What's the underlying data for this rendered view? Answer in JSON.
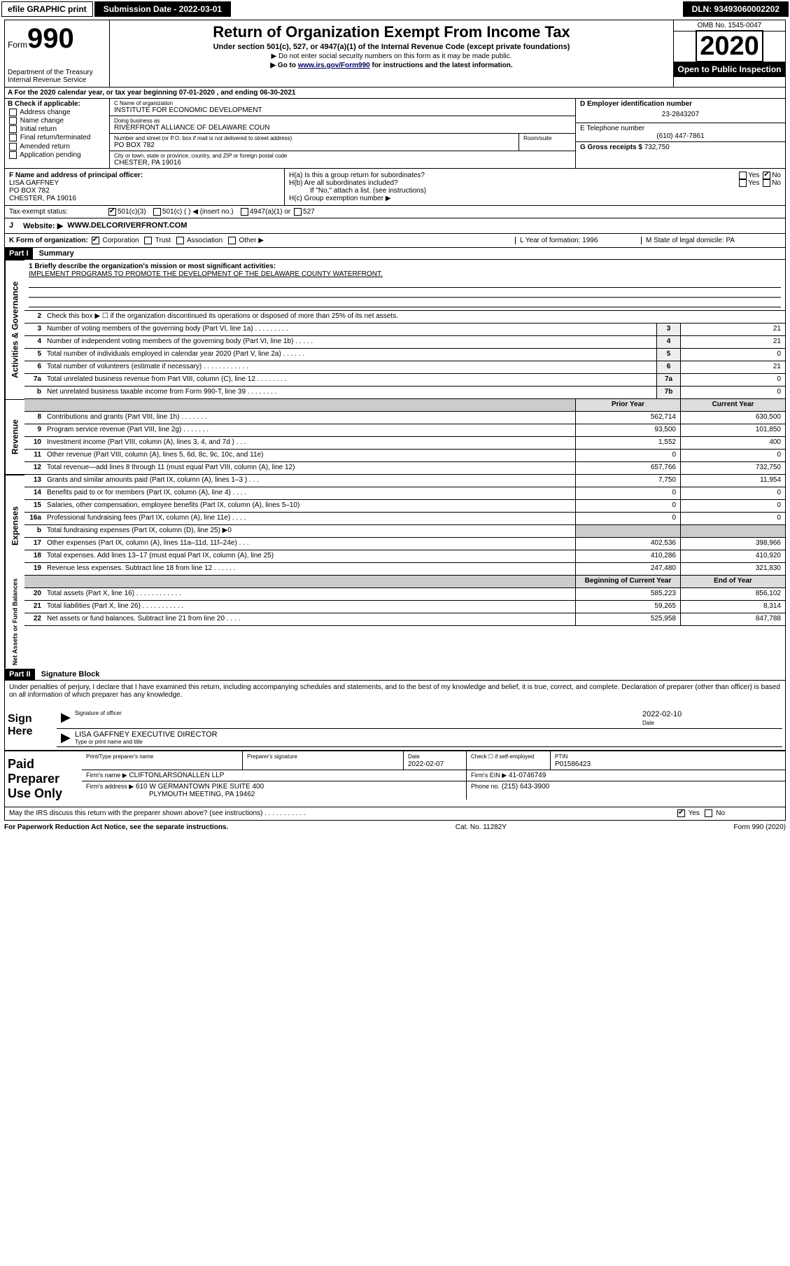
{
  "top": {
    "efile": "efile GRAPHIC print",
    "submission_label": "Submission Date - 2022-03-01",
    "dln": "DLN: 93493060002202"
  },
  "header": {
    "form_word": "Form",
    "form_num": "990",
    "title": "Return of Organization Exempt From Income Tax",
    "subtitle": "Under section 501(c), 527, or 4947(a)(1) of the Internal Revenue Code (except private foundations)",
    "note1": "▶ Do not enter social security numbers on this form as it may be made public.",
    "note2_pre": "▶ Go to ",
    "note2_link": "www.irs.gov/Form990",
    "note2_post": " for instructions and the latest information.",
    "dept": "Department of the Treasury",
    "irs": "Internal Revenue Service",
    "omb": "OMB No. 1545-0047",
    "year": "2020",
    "open": "Open to Public Inspection"
  },
  "rowA": "A For the 2020 calendar year, or tax year beginning 07-01-2020   , and ending 06-30-2021",
  "colB": {
    "hdr": "B Check if applicable:",
    "opts": [
      "Address change",
      "Name change",
      "Initial return",
      "Final return/terminated",
      "Amended return",
      "Application pending"
    ]
  },
  "org": {
    "name_lbl": "C Name of organization",
    "name": "INSTITUTE FOR ECONOMIC DEVELOPMENT",
    "dba_lbl": "Doing business as",
    "dba": "RIVERFRONT ALLIANCE OF DELAWARE COUN",
    "addr_lbl": "Number and street (or P.O. box if mail is not delivered to street address)",
    "addr": "PO BOX 782",
    "room_lbl": "Room/suite",
    "city_lbl": "City or town, state or province, country, and ZIP or foreign postal code",
    "city": "CHESTER, PA  19016"
  },
  "colD": {
    "ein_lbl": "D Employer identification number",
    "ein": "23-2843207",
    "tel_lbl": "E Telephone number",
    "tel": "(610) 447-7861",
    "gross_lbl": "G Gross receipts $",
    "gross": "732,750"
  },
  "f": {
    "lbl": "F  Name and address of principal officer:",
    "name": "LISA GAFFNEY",
    "addr1": "PO BOX 782",
    "addr2": "CHESTER, PA  19016"
  },
  "h": {
    "a": "H(a)  Is this a group return for subordinates?",
    "b": "H(b)  Are all subordinates included?",
    "note": "If \"No,\" attach a list. (see instructions)",
    "c": "H(c)  Group exemption number ▶"
  },
  "tax": {
    "lbl": "Tax-exempt status:",
    "o1": "501(c)(3)",
    "o2": "501(c) (   ) ◀ (insert no.)",
    "o3": "4947(a)(1) or",
    "o4": "527"
  },
  "j": {
    "lbl": "J",
    "text": "Website: ▶",
    "val": "WWW.DELCORIVERFRONT.COM"
  },
  "k": {
    "lbl": "K Form of organization:",
    "opts": [
      "Corporation",
      "Trust",
      "Association",
      "Other ▶"
    ],
    "l": "L Year of formation: 1996",
    "m": "M State of legal domicile: PA"
  },
  "part1": {
    "hdr": "Part I",
    "title": "Summary"
  },
  "gov": {
    "side": "Activities & Governance",
    "q1": "1  Briefly describe the organization's mission or most significant activities:",
    "mission": "IMPLEMENT PROGRAMS TO PROMOTE THE DEVELOPMENT OF THE DELAWARE COUNTY WATERFRONT.",
    "q2": "Check this box ▶ ☐  if the organization discontinued its operations or disposed of more than 25% of its net assets.",
    "lines": [
      {
        "n": "3",
        "d": "Number of voting members of the governing body (Part VI, line 1a)  .    .    .    .    .    .    .    .    .",
        "b": "3",
        "v": "21"
      },
      {
        "n": "4",
        "d": "Number of independent voting members of the governing body (Part VI, line 1b)  .    .    .    .    .",
        "b": "4",
        "v": "21"
      },
      {
        "n": "5",
        "d": "Total number of individuals employed in calendar year 2020 (Part V, line 2a)  .    .    .    .    .    .",
        "b": "5",
        "v": "0"
      },
      {
        "n": "6",
        "d": "Total number of volunteers (estimate if necessary)  .    .    .    .    .    .    .    .    .    .    .    .",
        "b": "6",
        "v": "21"
      },
      {
        "n": "7a",
        "d": "Total unrelated business revenue from Part VIII, column (C), line 12  .    .    .    .    .    .    .    .",
        "b": "7a",
        "v": "0"
      },
      {
        "n": "b",
        "d": "Net unrelated business taxable income from Form 990-T, line 39    .    .    .    .    .    .    .    .",
        "b": "7b",
        "v": "0"
      }
    ]
  },
  "rev": {
    "side": "Revenue",
    "hdr_prior": "Prior Year",
    "hdr_curr": "Current Year",
    "lines": [
      {
        "n": "8",
        "d": "Contributions and grants (Part VIII, line 1h)  .    .    .    .    .    .    .",
        "p": "562,714",
        "c": "630,500"
      },
      {
        "n": "9",
        "d": "Program service revenue (Part VIII, line 2g)  .    .    .    .    .    .    .",
        "p": "93,500",
        "c": "101,850"
      },
      {
        "n": "10",
        "d": "Investment income (Part VIII, column (A), lines 3, 4, and 7d )  .    .    .",
        "p": "1,552",
        "c": "400"
      },
      {
        "n": "11",
        "d": "Other revenue (Part VIII, column (A), lines 5, 6d, 8c, 9c, 10c, and 11e)",
        "p": "0",
        "c": "0"
      },
      {
        "n": "12",
        "d": "Total revenue—add lines 8 through 11 (must equal Part VIII, column (A), line 12)",
        "p": "657,766",
        "c": "732,750"
      }
    ]
  },
  "exp": {
    "side": "Expenses",
    "lines": [
      {
        "n": "13",
        "d": "Grants and similar amounts paid (Part IX, column (A), lines 1–3 )  .    .    .",
        "p": "7,750",
        "c": "11,954"
      },
      {
        "n": "14",
        "d": "Benefits paid to or for members (Part IX, column (A), line 4)  .    .    .    .",
        "p": "0",
        "c": "0"
      },
      {
        "n": "15",
        "d": "Salaries, other compensation, employee benefits (Part IX, column (A), lines 5–10)",
        "p": "0",
        "c": "0"
      },
      {
        "n": "16a",
        "d": "Professional fundraising fees (Part IX, column (A), line 11e)  .    .    .    .",
        "p": "0",
        "c": "0"
      },
      {
        "n": "b",
        "d": "Total fundraising expenses (Part IX, column (D), line 25) ▶0",
        "p": "",
        "c": "",
        "shade": true
      },
      {
        "n": "17",
        "d": "Other expenses (Part IX, column (A), lines 11a–11d, 11f–24e)  .    .    .",
        "p": "402,536",
        "c": "398,966"
      },
      {
        "n": "18",
        "d": "Total expenses. Add lines 13–17 (must equal Part IX, column (A), line 25)",
        "p": "410,286",
        "c": "410,920"
      },
      {
        "n": "19",
        "d": "Revenue less expenses. Subtract line 18 from line 12  .    .    .    .    .    .",
        "p": "247,480",
        "c": "321,830"
      }
    ]
  },
  "net": {
    "side": "Net Assets or Fund Balances",
    "hdr_beg": "Beginning of Current Year",
    "hdr_end": "End of Year",
    "lines": [
      {
        "n": "20",
        "d": "Total assets (Part X, line 16)  .    .    .    .    .    .    .    .    .    .    .    .",
        "p": "585,223",
        "c": "856,102"
      },
      {
        "n": "21",
        "d": "Total liabilities (Part X, line 26)  .    .    .    .    .    .    .    .    .    .    .",
        "p": "59,265",
        "c": "8,314"
      },
      {
        "n": "22",
        "d": "Net assets or fund balances. Subtract line 21 from line 20  .    .    .    .",
        "p": "525,958",
        "c": "847,788"
      }
    ]
  },
  "part2": {
    "hdr": "Part II",
    "title": "Signature Block"
  },
  "sig": {
    "penalty": "Under penalties of perjury, I declare that I have examined this return, including accompanying schedules and statements, and to the best of my knowledge and belief, it is true, correct, and complete. Declaration of preparer (other than officer) is based on all information of which preparer has any knowledge.",
    "sign_here": "Sign Here",
    "sig_officer": "Signature of officer",
    "date_lbl": "Date",
    "date": "2022-02-10",
    "name": "LISA GAFFNEY EXECUTIVE DIRECTOR",
    "name_lbl": "Type or print name and title"
  },
  "prep": {
    "title": "Paid Preparer Use Only",
    "col1": "Print/Type preparer's name",
    "col2": "Preparer's signature",
    "col3_lbl": "Date",
    "col3": "2022-02-07",
    "col4": "Check ☐ if self-employed",
    "col5_lbl": "PTIN",
    "col5": "P01586423",
    "firm_lbl": "Firm's name    ▶",
    "firm": "CLIFTONLARSONALLEN LLP",
    "ein_lbl": "Firm's EIN ▶",
    "ein": "41-0746749",
    "addr_lbl": "Firm's address ▶",
    "addr1": "610 W GERMANTOWN PIKE SUITE 400",
    "addr2": "PLYMOUTH MEETING, PA  19462",
    "phone_lbl": "Phone no.",
    "phone": "(215) 643-3900"
  },
  "discuss": "May the IRS discuss this return with the preparer shown above? (see instructions)   .    .    .    .    .    .    .    .    .    .    .",
  "footer": {
    "left": "For Paperwork Reduction Act Notice, see the separate instructions.",
    "mid": "Cat. No. 11282Y",
    "right": "Form 990 (2020)"
  },
  "colors": {
    "black": "#000000",
    "white": "#ffffff",
    "shade": "#cccccc",
    "link": "#000066"
  }
}
